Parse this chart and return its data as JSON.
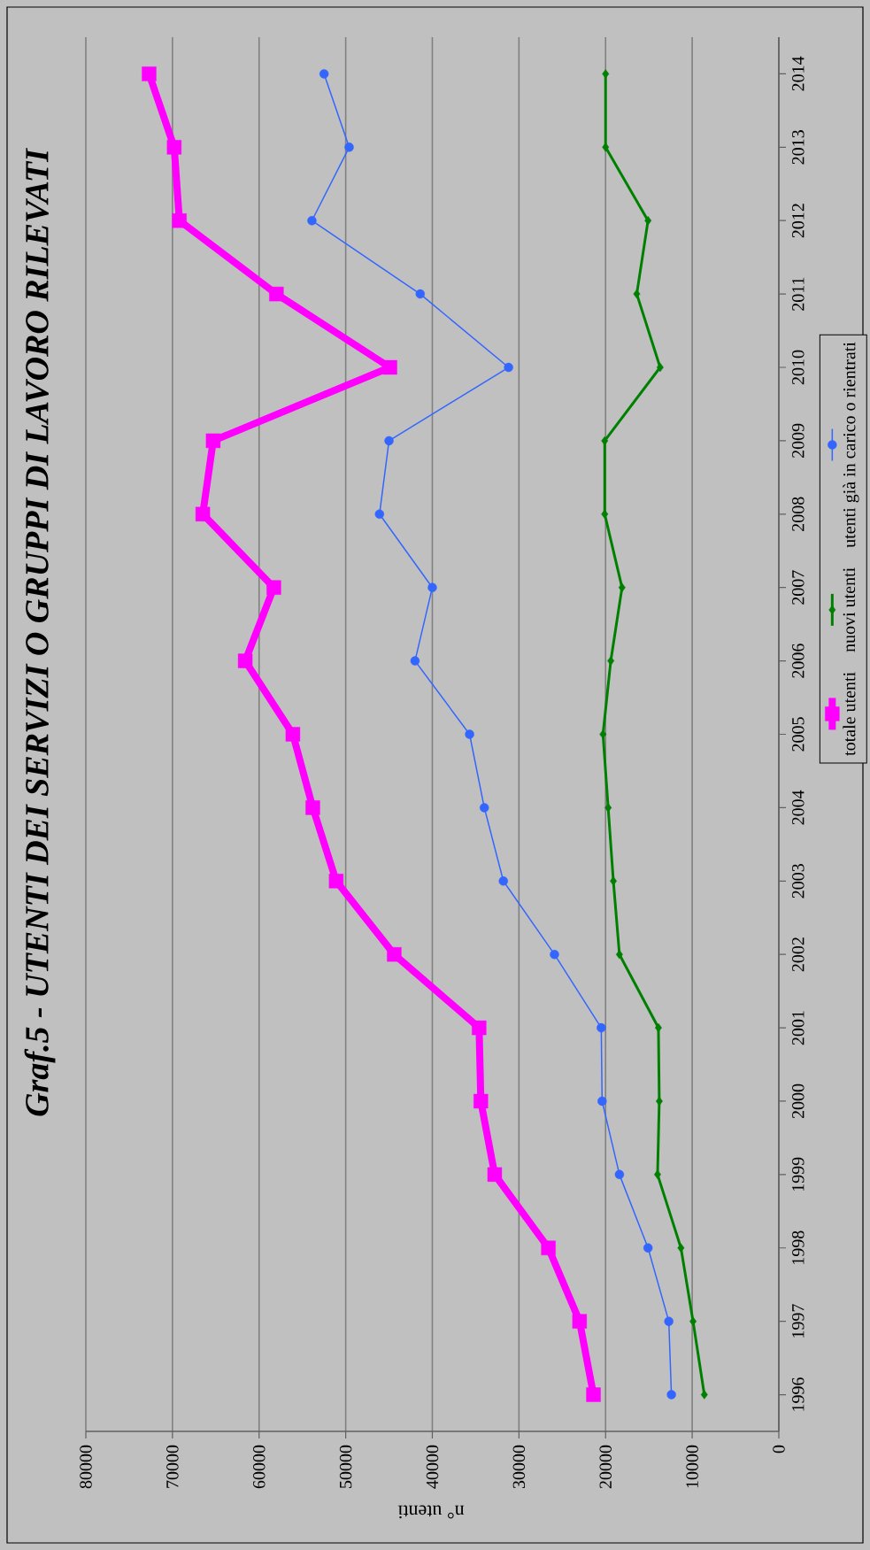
{
  "chart_data": {
    "type": "line",
    "title": "Graf.5 - UTENTI DEI SERVIZI O GRUPPI DI LAVORO RILEVATI",
    "xlabel": "n° utenti",
    "orientation": "horizontal",
    "categories": [
      "2014",
      "2013",
      "2012",
      "2011",
      "2010",
      "2009",
      "2008",
      "2007",
      "2006",
      "2005",
      "2004",
      "2003",
      "2002",
      "2001",
      "2000",
      "1999",
      "1998",
      "1997",
      "1996"
    ],
    "series": [
      {
        "name": "totale utenti",
        "color": "#ff00ff",
        "marker": "square",
        "values": [
          72700,
          69800,
          69200,
          58000,
          44900,
          65300,
          66500,
          58300,
          61600,
          56100,
          53800,
          51100,
          44400,
          34600,
          34400,
          32800,
          26600,
          23000,
          21400
        ]
      },
      {
        "name": "nuovi utenti",
        "color": "#008000",
        "marker": "diamond",
        "values": [
          20000,
          20000,
          15100,
          16400,
          13700,
          20100,
          20100,
          18100,
          19400,
          20300,
          19700,
          19100,
          18400,
          13900,
          13800,
          14000,
          11300,
          9900,
          8600
        ]
      },
      {
        "name": "utenti già in carico o rientrati",
        "color": "#3366ff",
        "marker": "circle",
        "values": [
          52500,
          49600,
          53900,
          41400,
          31200,
          45000,
          46100,
          40000,
          42000,
          35700,
          34000,
          31800,
          25900,
          20500,
          20400,
          18400,
          15100,
          12700,
          12400
        ]
      }
    ],
    "xlim": [
      80000,
      0
    ],
    "xticks": [
      80000,
      70000,
      60000,
      50000,
      40000,
      30000,
      20000,
      10000,
      0
    ],
    "grid": "x",
    "legend": "right"
  }
}
